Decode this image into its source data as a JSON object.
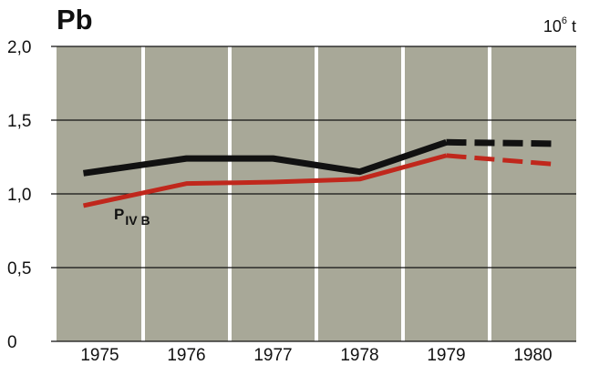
{
  "chart_data": {
    "type": "line",
    "title": "Pb",
    "unit_base": "10",
    "unit_exp": "6",
    "unit_suffix": "t",
    "categories": [
      "1975",
      "1976",
      "1977",
      "1978",
      "1979",
      "1980"
    ],
    "ylim": [
      0,
      2
    ],
    "yticks": [
      "0",
      "0,5",
      "1,0",
      "1,5",
      "2,0"
    ],
    "series": [
      {
        "name": "",
        "color": "#111111",
        "x": [
          1975,
          1976,
          1977,
          1978,
          1979,
          1980
        ],
        "values": [
          1.14,
          1.24,
          1.24,
          1.15,
          1.35,
          1.34
        ],
        "dashed_from": 1979
      },
      {
        "name_main": "P",
        "name_sub": "IV B",
        "color": "#c0271c",
        "x": [
          1975,
          1976,
          1977,
          1978,
          1979,
          1980
        ],
        "values": [
          0.92,
          1.07,
          1.08,
          1.1,
          1.26,
          1.2
        ],
        "dashed_from": 1979
      }
    ],
    "grid": true,
    "colors": {
      "plot_bg": "#a8a898",
      "grid": "#111111",
      "divider": "#ffffff"
    }
  }
}
